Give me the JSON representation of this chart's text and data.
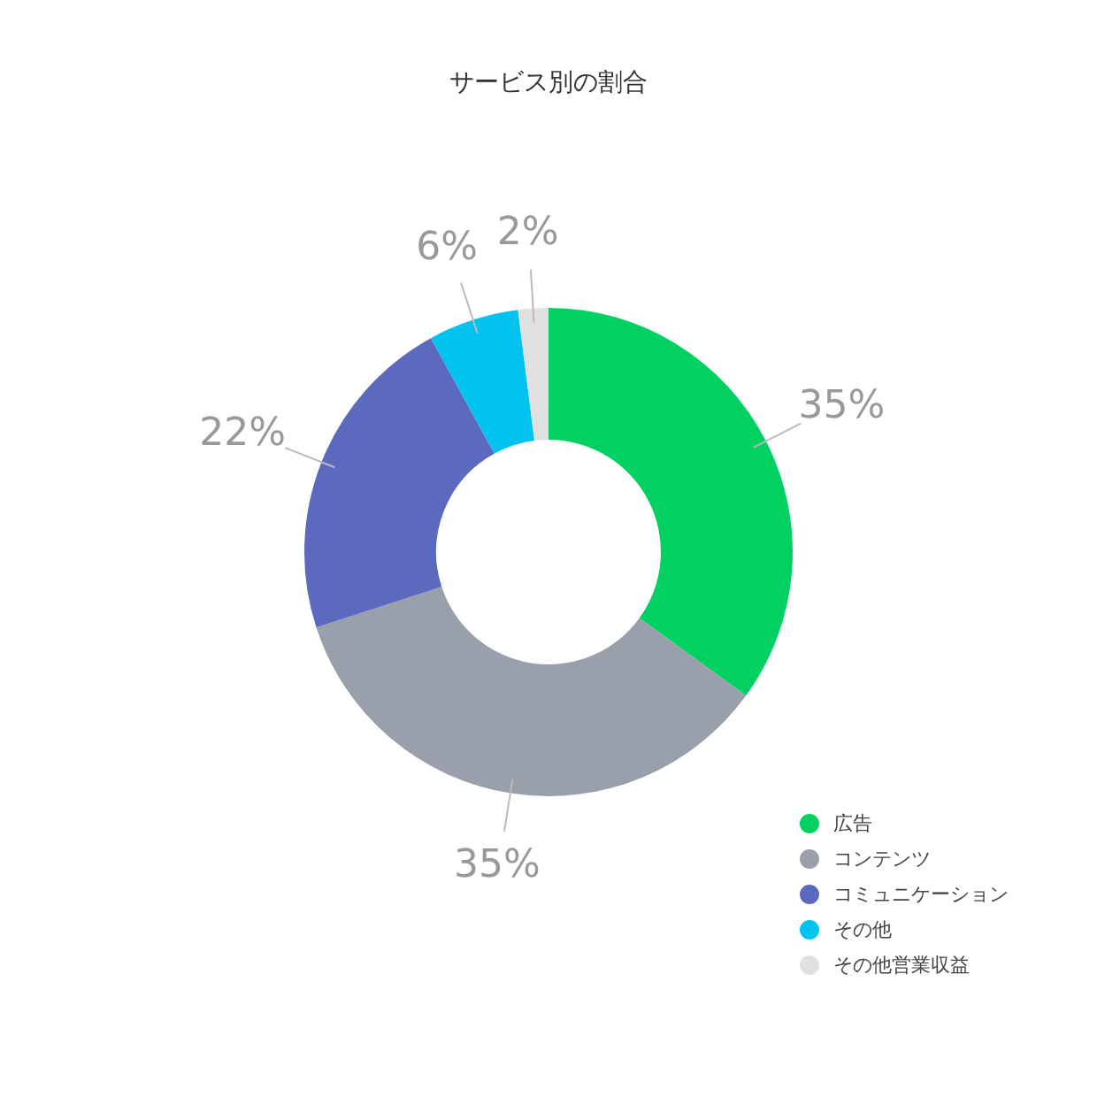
{
  "chart_data": {
    "type": "donut",
    "title": "サービス別の割合",
    "categories": [
      "広告",
      "コンテンツ",
      "コミュニケーション",
      "その他",
      "その他営業収益"
    ],
    "values": [
      35,
      35,
      22,
      6,
      2
    ],
    "value_labels": [
      "35%",
      "35%",
      "22%",
      "6%",
      "2%"
    ],
    "colors": [
      "#00d161",
      "#9aa0ab",
      "#5b6abf",
      "#00c3f0",
      "#e0e0e0"
    ],
    "legend": "bottom right"
  }
}
